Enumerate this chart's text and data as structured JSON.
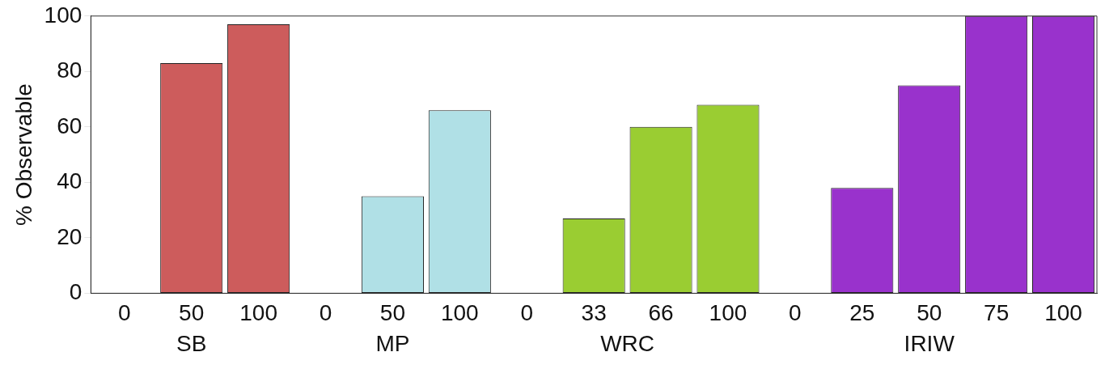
{
  "chart_data": {
    "type": "bar",
    "ylabel": "% Observable",
    "categories": [
      "0",
      "50",
      "100",
      "0",
      "50",
      "100",
      "0",
      "33",
      "66",
      "100",
      "0",
      "25",
      "50",
      "75",
      "100"
    ],
    "series": [
      {
        "name": "SB",
        "color": "#cd5c5c",
        "values": [
          0,
          83,
          97,
          null,
          null,
          null,
          null,
          null,
          null,
          null,
          null,
          null,
          null,
          null,
          null
        ]
      },
      {
        "name": "MP",
        "color": "#b0e0e6",
        "values": [
          null,
          null,
          null,
          0,
          35,
          66,
          null,
          null,
          null,
          null,
          null,
          null,
          null,
          null,
          null
        ]
      },
      {
        "name": "WRC",
        "color": "#9acd32",
        "values": [
          null,
          null,
          null,
          null,
          null,
          null,
          0,
          27,
          60,
          68,
          null,
          null,
          null,
          null,
          null
        ]
      },
      {
        "name": "IRIW",
        "color": "#9932cc",
        "values": [
          null,
          null,
          null,
          null,
          null,
          null,
          null,
          null,
          null,
          null,
          0,
          38,
          75,
          100,
          100
        ]
      }
    ],
    "ylim": [
      0,
      100
    ],
    "yticks": [
      0,
      20,
      40,
      60,
      80,
      100
    ],
    "grid": false,
    "legend": false
  }
}
